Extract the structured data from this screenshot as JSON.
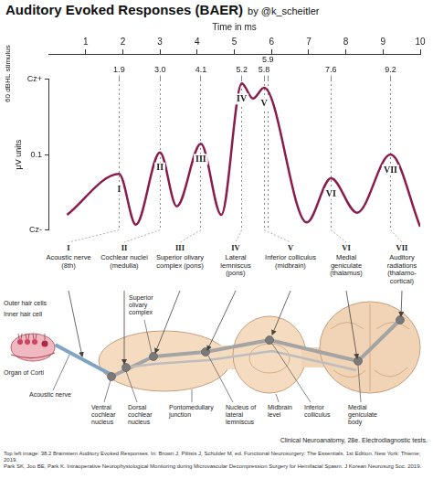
{
  "title": "Auditory Evoked Responses (BAER)",
  "subtitle": "by @k_scheitler",
  "chart_data": {
    "type": "line",
    "x_label": "Time in ms",
    "y_label": "μV units",
    "annotations": [
      "60 dBHL stimulus"
    ],
    "x": [
      0.5,
      1.9,
      2.35,
      3.0,
      3.45,
      4.1,
      4.65,
      5.2,
      5.5,
      5.8,
      6.95,
      7.6,
      8.3,
      9.2,
      10
    ],
    "values": [
      -0.18,
      0.01,
      -0.225,
      0.11,
      -0.14,
      0.15,
      -0.18,
      0.43,
      0.36,
      0.41,
      -0.215,
      -0.01,
      -0.17,
      0.1,
      -0.235
    ],
    "point_labels": [
      null,
      "I",
      null,
      "II",
      null,
      "III",
      null,
      "IV",
      null,
      "V",
      null,
      "VI",
      null,
      "VII",
      null
    ],
    "color": "#8b1c4e",
    "xlim": [
      0,
      10
    ],
    "xticks": [
      1,
      2,
      3,
      4,
      5,
      6,
      7,
      8,
      9,
      10
    ],
    "x2lim": [
      0,
      10
    ],
    "x2ticks": [
      1.9,
      {
        "value": 3,
        "label": "3.0"
      },
      4.1,
      5.2,
      5.8,
      5.9,
      7.6,
      9.2
    ],
    "ylim": [
      -0.25,
      0.45
    ],
    "yticks": [
      {
        "value": -0.25,
        "label": "Cz-"
      },
      0.1,
      {
        "value": 0.45,
        "label": "Cz+"
      }
    ]
  },
  "generators": [
    {
      "peak": "I",
      "structure": "Acoustic nerve (8th)"
    },
    {
      "peak": "II",
      "structure": "Cochlear nuclei (medulla)"
    },
    {
      "peak": "III",
      "structure": "Superior olivary complex (pons)"
    },
    {
      "peak": "IV",
      "structure": "Lateral lemniscus (pons)"
    },
    {
      "peak": "V",
      "structure": "Inferior colliculus (midbrain)"
    },
    {
      "peak": "VI",
      "structure": "Medial geniculate (thalamus)"
    },
    {
      "peak": "VII",
      "structure": "Auditory radiations (thalamo-cortical)"
    }
  ],
  "diagram": {
    "outer_hair_cells": "Outer hair cells",
    "inner_hair_cell": "Inner hair cell",
    "organ_of_corti": "Organ of Corti",
    "acoustic_nerve": "Acoustic nerve",
    "superior_olivary_complex": "Superior olivary complex",
    "ventral_cochlear_nucleus": "Ventral cochlear nucleus",
    "dorsal_cochlear_nucleus": "Dorsal cochlear nucleus",
    "pontomedullary_junction": "Pontomedullary junction",
    "nucleus_of_lateral_lemniscus": "Nucleus of lateral lemniscus",
    "midbrain_level": "Midbrain level",
    "inferior_colliculus": "Inferior colliculus",
    "medial_geniculate_body": "Medial geniculate body",
    "source": "Clinical Neuroanatomy, 28e. Electrodiagnostic tests."
  },
  "footer": [
    "Top left image: 38.2 Brainstem Auditory Evoked Responses. In: Brown J, Pilitsis J, Schulder M, ed. Functional Neurosurgery: The Essentials. 1st Edition. New York: Thieme; 2019.",
    "Park SK, Joo BE, Park K. Intraoperative Neurophysiological Monitoring during Microvascular Decompression Surgery for Hemifacial Spasm. J Korean Neurosurg Soc. 2019."
  ]
}
